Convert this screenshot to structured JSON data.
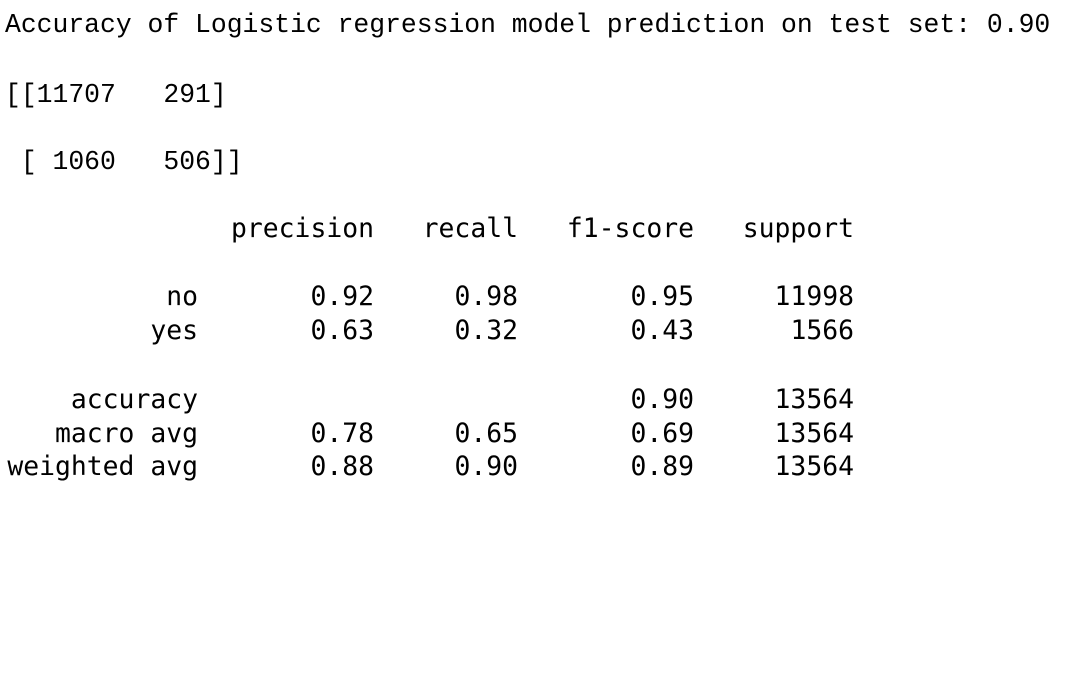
{
  "accuracy_line": "Accuracy of Logistic regression model prediction on test set: 0.90",
  "confusion_matrix": {
    "row1": "[[11707   291]",
    "row2": " [ 1060   506]]"
  },
  "report": {
    "headers": {
      "precision": "precision",
      "recall": "recall",
      "f1": "f1-score",
      "support": "support"
    },
    "rows": [
      {
        "label": "no",
        "precision": "0.92",
        "recall": "0.98",
        "f1": "0.95",
        "support": "11998"
      },
      {
        "label": "yes",
        "precision": "0.63",
        "recall": "0.32",
        "f1": "0.43",
        "support": "1566"
      },
      {
        "label": "accuracy",
        "precision": "",
        "recall": "",
        "f1": "0.90",
        "support": "13564"
      },
      {
        "label": "macro avg",
        "precision": "0.78",
        "recall": "0.65",
        "f1": "0.69",
        "support": "13564"
      },
      {
        "label": "weighted avg",
        "precision": "0.88",
        "recall": "0.90",
        "f1": "0.89",
        "support": "13564"
      }
    ]
  }
}
